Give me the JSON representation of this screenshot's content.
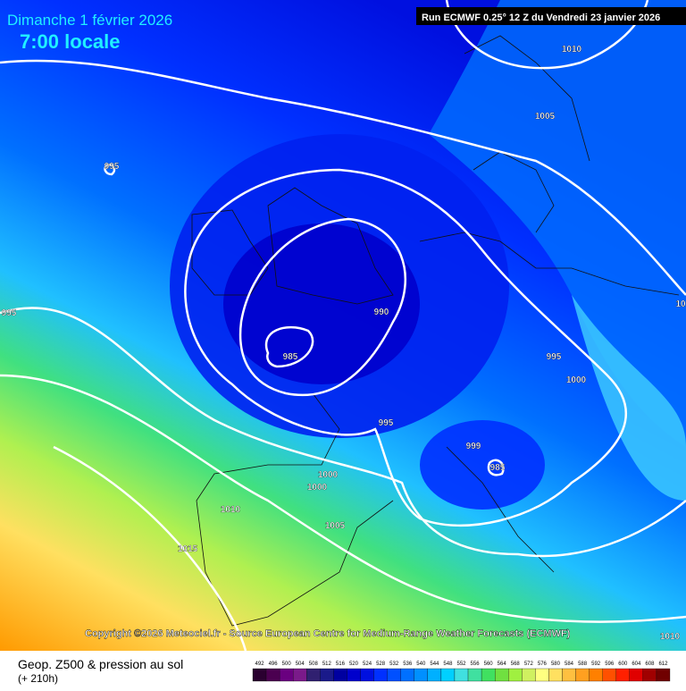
{
  "header": {
    "title": "Dimanche 1 février 2026",
    "subtitle": "7:00 locale",
    "run": "Run ECMWF 0.25° 12 Z du Vendredi 23 janvier 2026"
  },
  "isobar_labels": [
    "1010",
    "1005",
    "995",
    "995",
    "990",
    "985",
    "995",
    "1000",
    "995",
    "999",
    "985",
    "1000",
    "1000",
    "1010",
    "1005",
    "1015",
    "1010",
    "10"
  ],
  "copyright": "Copyright ©2026 Meteociel.fr - Source European Centre for Medium-Range Weather Forecasts (ECMWF)",
  "footer": {
    "field": "Geop. Z500 & pression au sol",
    "lead": "(+ 210h)"
  },
  "scale": {
    "labels": [
      "492",
      "496",
      "500",
      "504",
      "508",
      "512",
      "516",
      "520",
      "524",
      "528",
      "532",
      "536",
      "540",
      "544",
      "548",
      "552",
      "556",
      "560",
      "564",
      "568",
      "572",
      "576",
      "580",
      "584",
      "588",
      "592",
      "596",
      "600",
      "604",
      "608",
      "612"
    ],
    "colors": [
      "#2a0030",
      "#4b0050",
      "#6a0080",
      "#7a1a8a",
      "#302070",
      "#1a1a8a",
      "#0000a0",
      "#0000cc",
      "#0010e0",
      "#0030ff",
      "#0050ff",
      "#0070ff",
      "#0090ff",
      "#00b0ff",
      "#00d0ff",
      "#40e0e0",
      "#40e0a0",
      "#40e060",
      "#70e040",
      "#a0f040",
      "#d0f060",
      "#ffff80",
      "#ffe060",
      "#ffc040",
      "#ffa020",
      "#ff8000",
      "#ff5000",
      "#ff2000",
      "#e00000",
      "#a00000",
      "#700000"
    ]
  }
}
